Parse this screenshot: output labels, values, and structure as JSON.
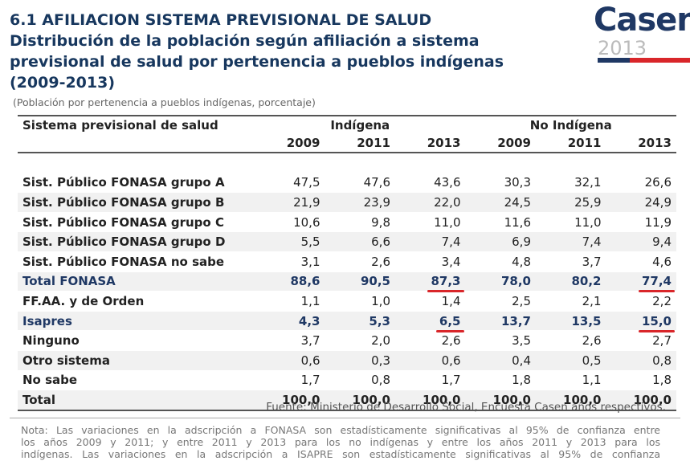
{
  "header": {
    "title": "6.1 AFILIACION SISTEMA PREVISIONAL DE SALUD",
    "subtitle_lines": [
      "Distribución de la población según afiliación a sistema",
      "previsional de salud por pertenencia a pueblos indígenas",
      "(2009-2013)"
    ],
    "note": "(Población por pertenencia a pueblos indígenas, porcentaje)"
  },
  "logo": {
    "name": "Casen",
    "year": "2013"
  },
  "table": {
    "label_header": "Sistema previsional de salud",
    "groups": [
      "Indígena",
      "No Indígena"
    ],
    "years": [
      "2009",
      "2011",
      "2013",
      "2009",
      "2011",
      "2013"
    ],
    "rows": [
      [
        "Sist. Público FONASA grupo A",
        "47,5",
        "47,6",
        "43,6",
        "30,3",
        "32,1",
        "26,6"
      ],
      [
        "Sist. Público FONASA grupo B",
        "21,9",
        "23,9",
        "22,0",
        "24,5",
        "25,9",
        "24,9"
      ],
      [
        "Sist. Público FONASA grupo C",
        "10,6",
        "9,8",
        "11,0",
        "11,6",
        "11,0",
        "11,9"
      ],
      [
        "Sist. Público FONASA grupo D",
        "5,5",
        "6,6",
        "7,4",
        "6,9",
        "7,4",
        "9,4"
      ],
      [
        "Sist. Público FONASA no sabe",
        "3,1",
        "2,6",
        "3,4",
        "4,8",
        "3,7",
        "4,6"
      ],
      [
        "Total FONASA",
        "88,6",
        "90,5",
        "87,3",
        "78,0",
        "80,2",
        "77,4"
      ],
      [
        "FF.AA. y de Orden",
        "1,1",
        "1,0",
        "1,4",
        "2,5",
        "2,1",
        "2,2"
      ],
      [
        "Isapres",
        "4,3",
        "5,3",
        "6,5",
        "13,7",
        "13,5",
        "15,0"
      ],
      [
        "Ninguno",
        "3,7",
        "2,0",
        "2,6",
        "3,5",
        "2,6",
        "2,7"
      ],
      [
        "Otro sistema",
        "0,6",
        "0,3",
        "0,6",
        "0,4",
        "0,5",
        "0,8"
      ],
      [
        "No sabe",
        "1,7",
        "0,8",
        "1,7",
        "1,8",
        "1,1",
        "1,8"
      ],
      [
        "Total",
        "100,0",
        "100,0",
        "100,0",
        "100,0",
        "100,0",
        "100,0"
      ]
    ]
  },
  "source": "Fuente: Ministerio de Desarrollo Social, Encuesta Casen años respectivos.",
  "footnote_lines": [
    "Nota: Las variaciones en la adscripción a FONASA son estadísticamente significativas al 95% de confianza entre",
    "los años 2009 y 2011; y entre 2011 y 2013 para los no indígenas y entre los años 2011 y 2013 para los",
    "indígenas. Las variaciones en la adscripción a ISAPRE son estadísticamente significativas al 95% de confianza"
  ]
}
